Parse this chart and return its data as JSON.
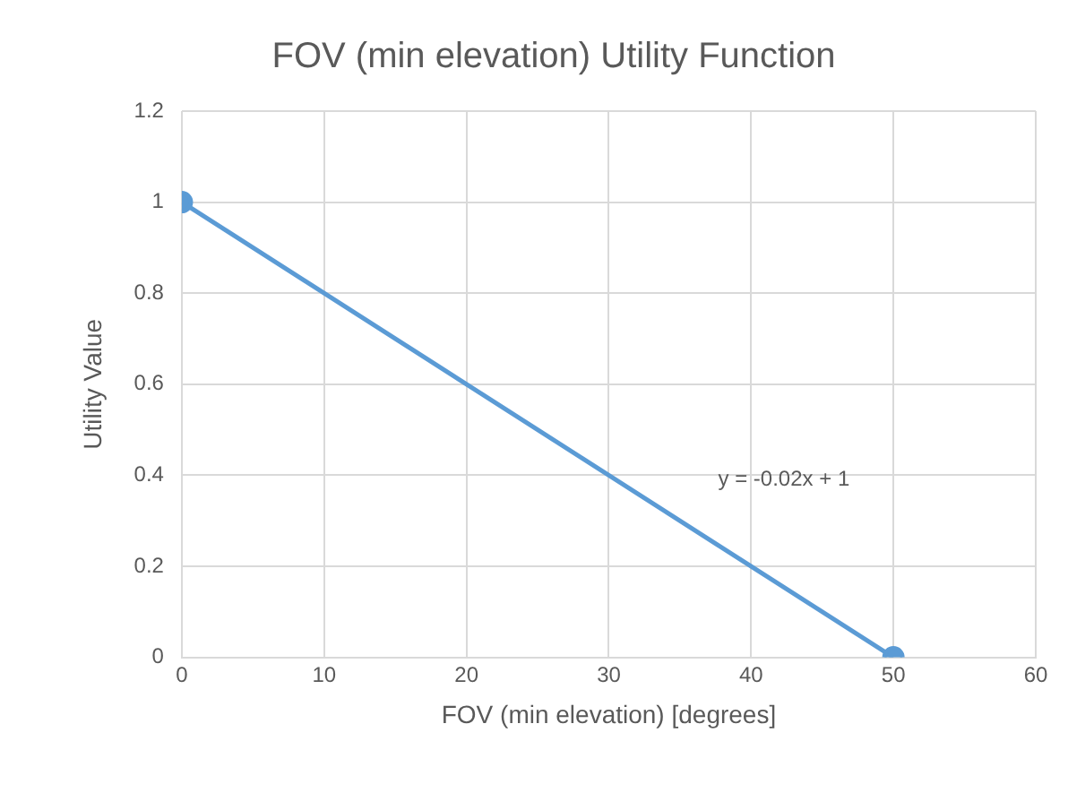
{
  "chart_data": {
    "type": "line",
    "title": "FOV (min elevation) Utility Function",
    "xlabel": "FOV (min elevation) [degrees]",
    "ylabel": "Utility Value",
    "x": [
      0,
      50
    ],
    "series": [
      {
        "color": "#5b9bd5",
        "values": [
          1,
          0
        ]
      }
    ],
    "xlim": [
      0,
      60
    ],
    "xticks": [
      0,
      10,
      20,
      30,
      40,
      50,
      60
    ],
    "ylim": [
      0,
      1.2
    ],
    "yticks": [
      0,
      0.2,
      0.4,
      0.6,
      0.8,
      1,
      1.2
    ],
    "grid": true,
    "legend": false,
    "marker": "circle",
    "line_style": "solid",
    "annotations": [
      "y = -0.02x + 1"
    ]
  }
}
